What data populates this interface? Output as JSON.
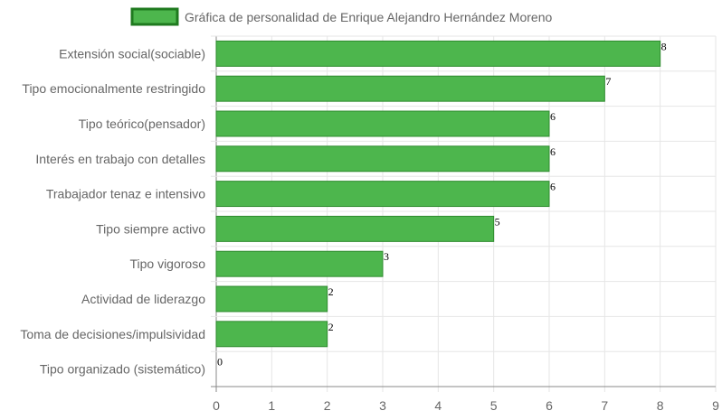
{
  "chart_data": {
    "type": "bar",
    "orientation": "horizontal",
    "categories": [
      "Extensión social(sociable)",
      "Tipo emocionalmente restringido",
      "Tipo teórico(pensador)",
      "Interés en trabajo con detalles",
      "Trabajador tenaz e intensivo",
      "Tipo siempre activo",
      "Tipo vigoroso",
      "Actividad de liderazgo",
      "Toma de decisiones/impulsividad",
      "Tipo organizado (sistemático)"
    ],
    "series": [
      {
        "name": "Gráfica de personalidad de Enrique Alejandro Hernández Moreno",
        "values": [
          8,
          7,
          6,
          6,
          6,
          5,
          3,
          2,
          2,
          0
        ]
      }
    ],
    "xlim": [
      0,
      9
    ],
    "x_ticks": [
      "0",
      "1",
      "2",
      "3",
      "4",
      "5",
      "6",
      "7",
      "8",
      "9"
    ],
    "grid": true,
    "legend_position": "top",
    "colors": {
      "bar_fill": "#4db64d",
      "bar_border": "#2e8b2e",
      "legend_fill": "#4db64d",
      "legend_border": "#1f7a1f",
      "grid": "#e6e6e6",
      "axis": "#888888",
      "text": "#666666"
    }
  }
}
